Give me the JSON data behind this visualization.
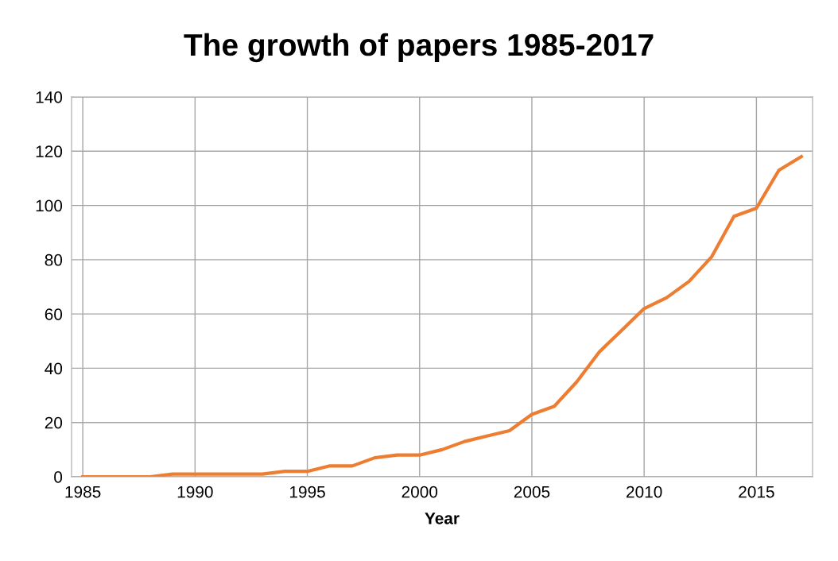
{
  "chart_data": {
    "type": "line",
    "title": "The growth of papers 1985-2017",
    "xlabel": "Year",
    "x": [
      1985,
      1986,
      1987,
      1988,
      1989,
      1990,
      1991,
      1992,
      1993,
      1994,
      1995,
      1996,
      1997,
      1998,
      1999,
      2000,
      2001,
      2002,
      2003,
      2004,
      2005,
      2006,
      2007,
      2008,
      2009,
      2010,
      2011,
      2012,
      2013,
      2014,
      2015,
      2016,
      2017
    ],
    "series": [
      {
        "color": "#ed7d31",
        "values": [
          0,
          0,
          0,
          0,
          1,
          1,
          1,
          1,
          1,
          2,
          2,
          4,
          4,
          7,
          8,
          8,
          10,
          13,
          15,
          17,
          23,
          26,
          35,
          46,
          54,
          62,
          66,
          72,
          81,
          96,
          99,
          113,
          118
        ]
      }
    ],
    "xlim": [
      1984.5,
      2017.5
    ],
    "xticks": [
      1985,
      1990,
      1995,
      2000,
      2005,
      2010,
      2015
    ],
    "ylim": [
      0,
      140
    ],
    "yticks": [
      0,
      20,
      40,
      60,
      80,
      100,
      120,
      140
    ],
    "grid": true,
    "legend": false,
    "marker": "none",
    "line_style": "solid"
  }
}
